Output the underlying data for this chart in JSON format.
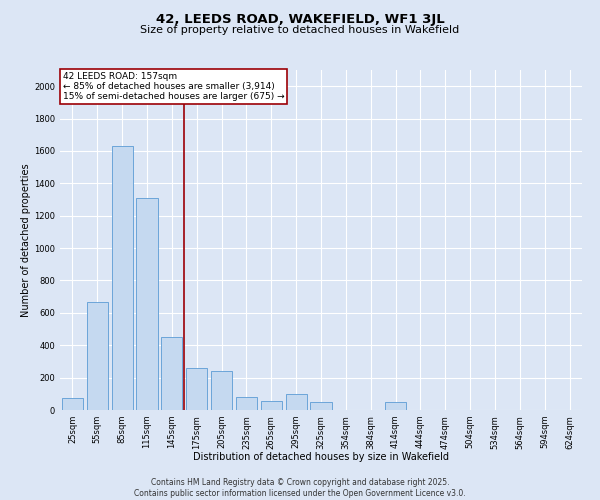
{
  "title": "42, LEEDS ROAD, WAKEFIELD, WF1 3JL",
  "subtitle": "Size of property relative to detached houses in Wakefield",
  "xlabel": "Distribution of detached houses by size in Wakefield",
  "ylabel": "Number of detached properties",
  "categories": [
    "25sqm",
    "55sqm",
    "85sqm",
    "115sqm",
    "145sqm",
    "175sqm",
    "205sqm",
    "235sqm",
    "265sqm",
    "295sqm",
    "325sqm",
    "354sqm",
    "384sqm",
    "414sqm",
    "444sqm",
    "474sqm",
    "504sqm",
    "534sqm",
    "564sqm",
    "594sqm",
    "624sqm"
  ],
  "values": [
    75,
    670,
    1630,
    1310,
    450,
    260,
    240,
    80,
    55,
    100,
    50,
    0,
    0,
    50,
    0,
    0,
    0,
    0,
    0,
    0,
    0
  ],
  "bar_color": "#c5d9f0",
  "bar_edge_color": "#5b9bd5",
  "reference_line_x": 4.5,
  "reference_line_color": "#9c0006",
  "ylim": [
    0,
    2100
  ],
  "yticks": [
    0,
    200,
    400,
    600,
    800,
    1000,
    1200,
    1400,
    1600,
    1800,
    2000
  ],
  "footer_line1": "Contains HM Land Registry data © Crown copyright and database right 2025.",
  "footer_line2": "Contains public sector information licensed under the Open Government Licence v3.0.",
  "bg_color": "#dce6f5",
  "plot_bg_color": "#dce6f5",
  "grid_color": "#ffffff",
  "title_fontsize": 9.5,
  "subtitle_fontsize": 8,
  "label_fontsize": 7,
  "tick_fontsize": 6,
  "annot_fontsize": 6.5,
  "footer_fontsize": 5.5
}
